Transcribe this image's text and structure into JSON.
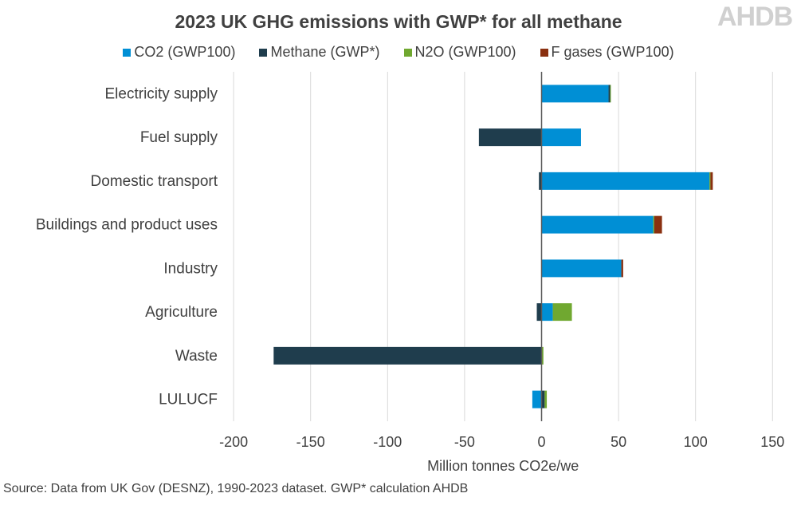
{
  "chart_data": {
    "type": "bar",
    "orientation": "horizontal",
    "stacked": true,
    "title": "2023 UK GHG emissions with GWP* for all methane",
    "xlabel": "Million tonnes CO2e/we",
    "ylabel": "",
    "xlim": [
      -200,
      150
    ],
    "xticks": [
      -200,
      -150,
      -100,
      -50,
      0,
      50,
      100,
      150
    ],
    "grid": true,
    "legend_position": "top",
    "categories": [
      "Electricity supply",
      "Fuel supply",
      "Domestic transport",
      "Buildings and product uses",
      "Industry",
      "Agriculture",
      "Waste",
      "LULUCF"
    ],
    "series": [
      {
        "name": "CO2 (GWP100)",
        "color": "#008fd5",
        "values": [
          43.5,
          25.6,
          109,
          72.5,
          51.8,
          7.3,
          0,
          -6
        ]
      },
      {
        "name": "Methane (GWP*)",
        "color": "#1f3d4d",
        "values": [
          1,
          -40.7,
          -1.7,
          0,
          0,
          -3.1,
          -174,
          2
        ]
      },
      {
        "name": "N2O (GWP100)",
        "color": "#70a830",
        "values": [
          0.3,
          0,
          0.7,
          0.7,
          0,
          12.4,
          1.2,
          1.4
        ]
      },
      {
        "name": "F gases (GWP100)",
        "color": "#8a3010",
        "values": [
          0,
          0,
          1.5,
          5,
          1.2,
          0,
          0,
          0
        ]
      }
    ]
  },
  "source": "Source: Data from UK Gov (DESNZ), 1990-2023 dataset. GWP* calculation AHDB",
  "logo": "AHDB"
}
